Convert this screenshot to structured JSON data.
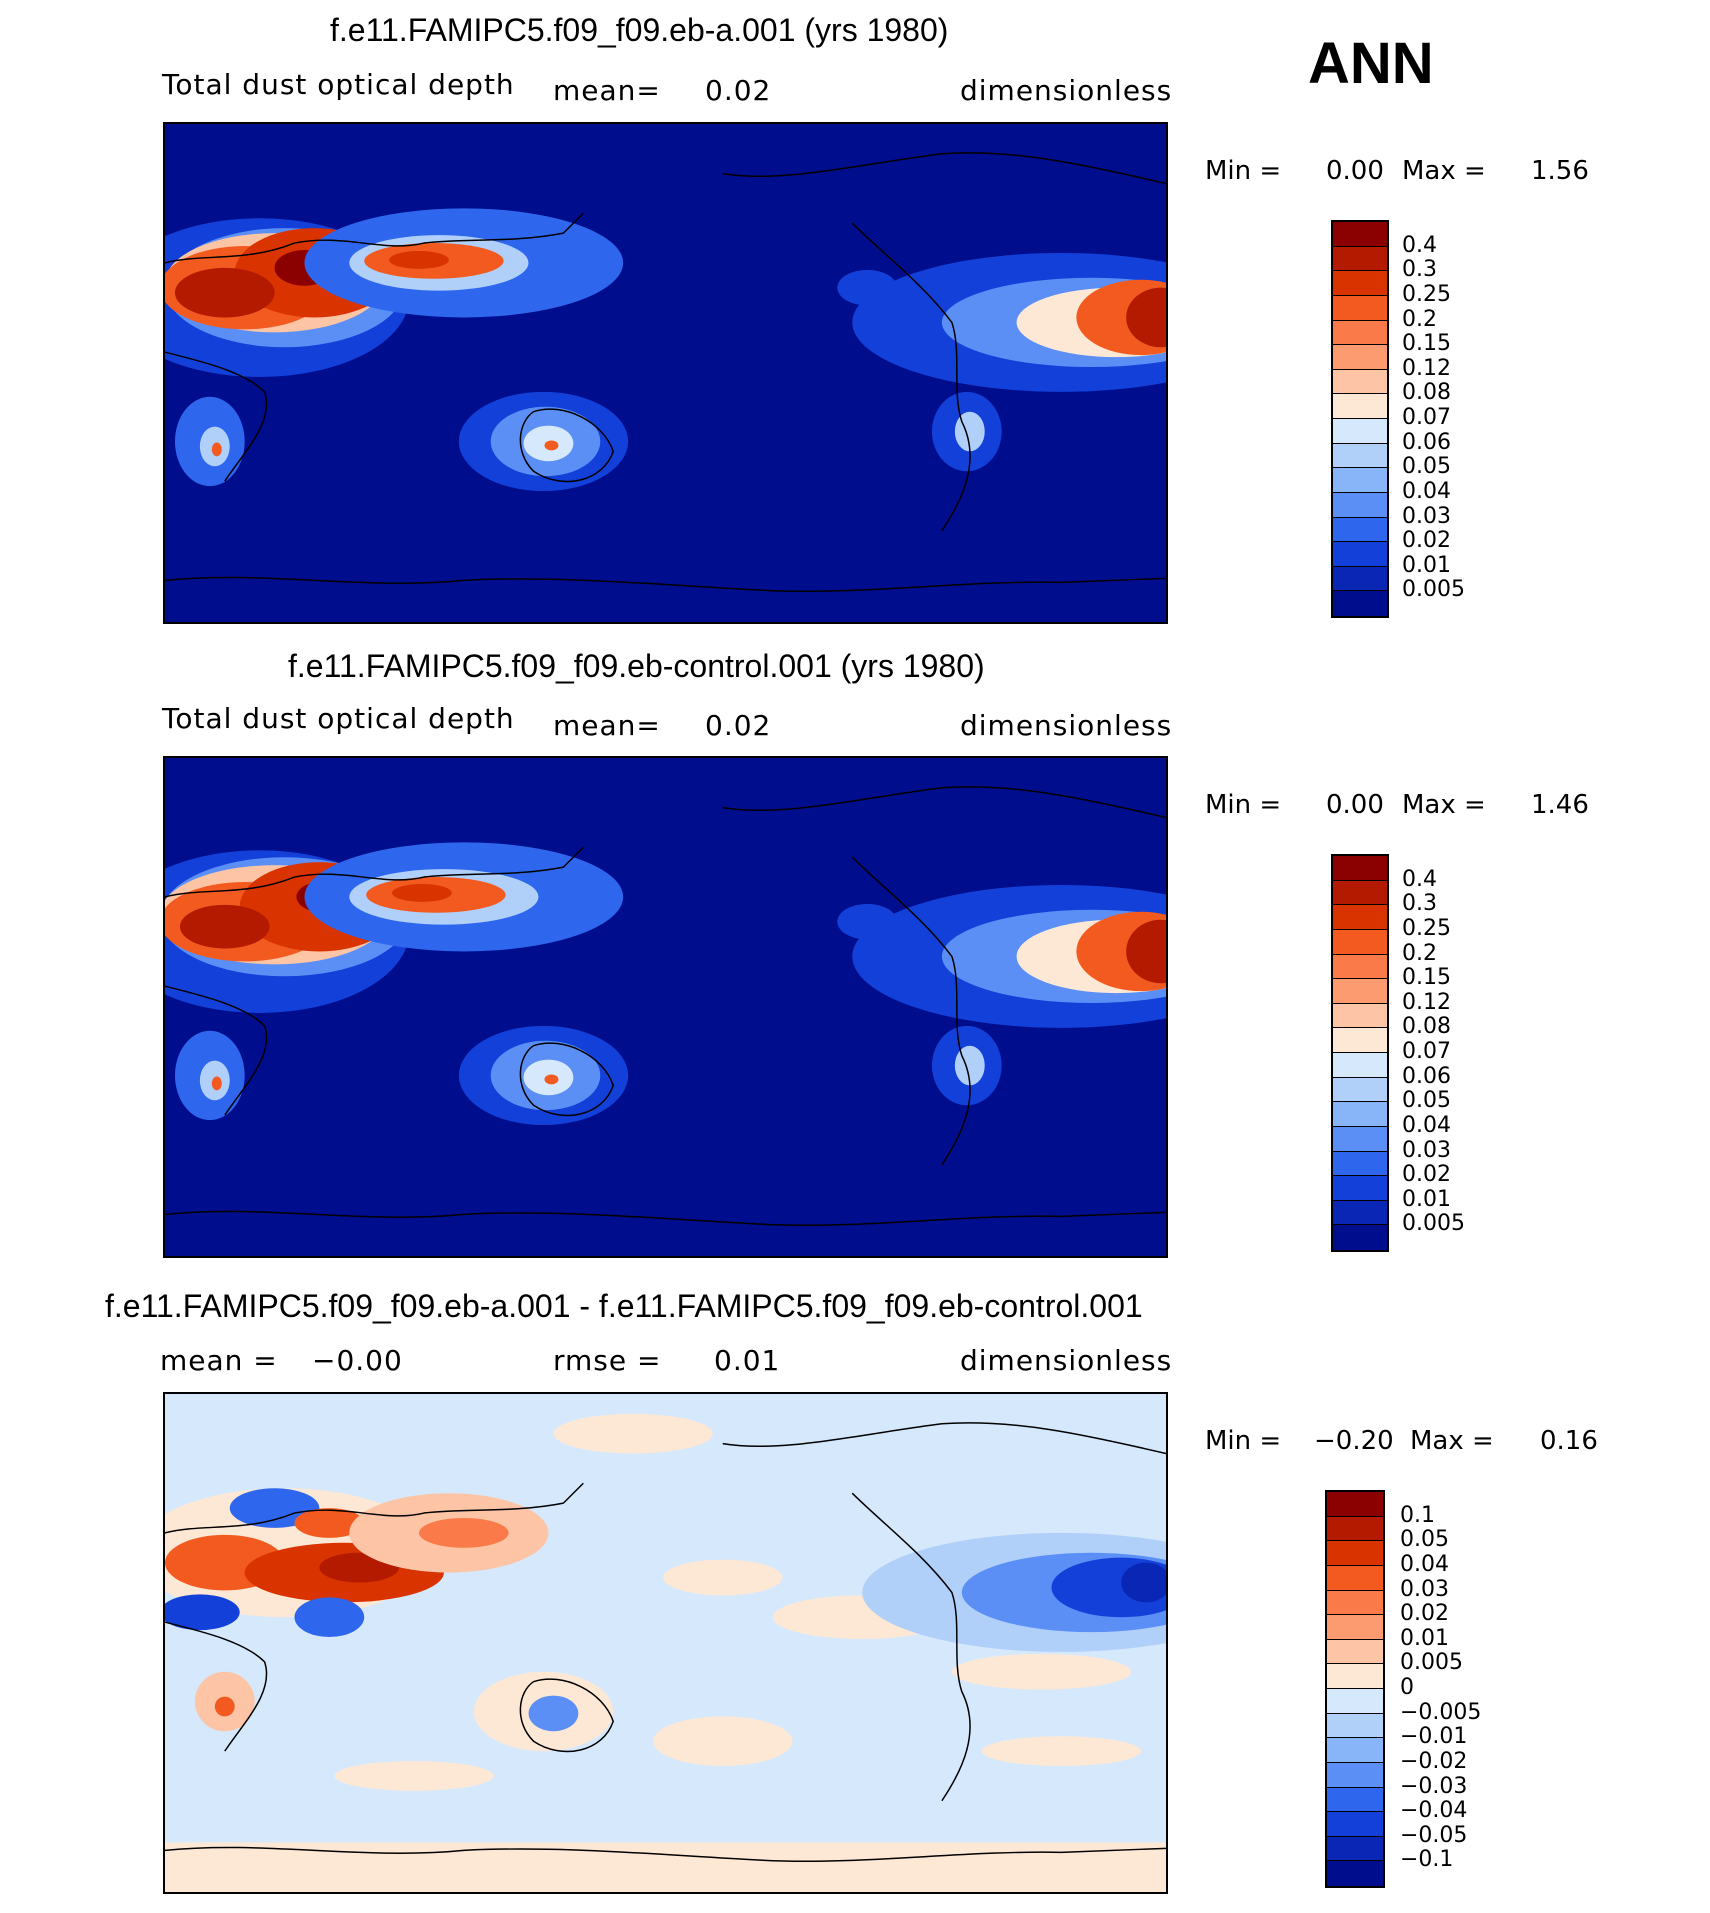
{
  "season": "ANN",
  "panels": [
    {
      "title": "f.e11.FAMIPC5.f09_f09.eb-a.001 (yrs 1980)",
      "left_label": "Total dust optical depth",
      "mid_label": "mean=",
      "mid_value": "0.02",
      "right_label": "dimensionless",
      "min_label": "Min =",
      "min_value": "0.00",
      "max_label": "Max =",
      "max_value": "1.56"
    },
    {
      "title": "f.e11.FAMIPC5.f09_f09.eb-control.001 (yrs 1980)",
      "left_label": "Total dust optical depth",
      "mid_label": "mean=",
      "mid_value": "0.02",
      "right_label": "dimensionless",
      "min_label": "Min =",
      "min_value": "0.00",
      "max_label": "Max =",
      "max_value": "1.46"
    },
    {
      "title": "f.e11.FAMIPC5.f09_f09.eb-a.001 - f.e11.FAMIPC5.f09_f09.eb-control.001",
      "left_label": "mean =",
      "left_value": "−0.00",
      "mid_label": "rmse =",
      "mid_value": "0.01",
      "right_label": "dimensionless",
      "min_label": "Min =",
      "min_value": "−0.20",
      "max_label": "Max =",
      "max_value": "0.16"
    }
  ],
  "colorbar_abs": {
    "levels": [
      "0.4",
      "0.3",
      "0.25",
      "0.2",
      "0.15",
      "0.12",
      "0.08",
      "0.07",
      "0.06",
      "0.05",
      "0.04",
      "0.03",
      "0.02",
      "0.01",
      "0.005"
    ],
    "colors": [
      "#8b0000",
      "#b31a00",
      "#d93300",
      "#f25a1f",
      "#fa7a4a",
      "#fc9a70",
      "#fdc4a6",
      "#fde8d6",
      "#d6e8fb",
      "#b0d0fa",
      "#88b4f8",
      "#5b8ff5",
      "#2e66ee",
      "#1240d8",
      "#0a26b5",
      "#000d8c"
    ]
  },
  "colorbar_diff": {
    "levels": [
      "0.1",
      "0.05",
      "0.04",
      "0.03",
      "0.02",
      "0.01",
      "0.005",
      "0",
      "−0.005",
      "−0.01",
      "−0.02",
      "−0.03",
      "−0.04",
      "−0.05",
      "−0.1"
    ],
    "colors": [
      "#8b0000",
      "#b31a00",
      "#d93300",
      "#f25a1f",
      "#fa7a4a",
      "#fc9a70",
      "#fdc4a6",
      "#fde8d6",
      "#d6e8fb",
      "#b0d0fa",
      "#88b4f8",
      "#5b8ff5",
      "#2e66ee",
      "#1240d8",
      "#0a26b5",
      "#000d8c"
    ]
  }
}
